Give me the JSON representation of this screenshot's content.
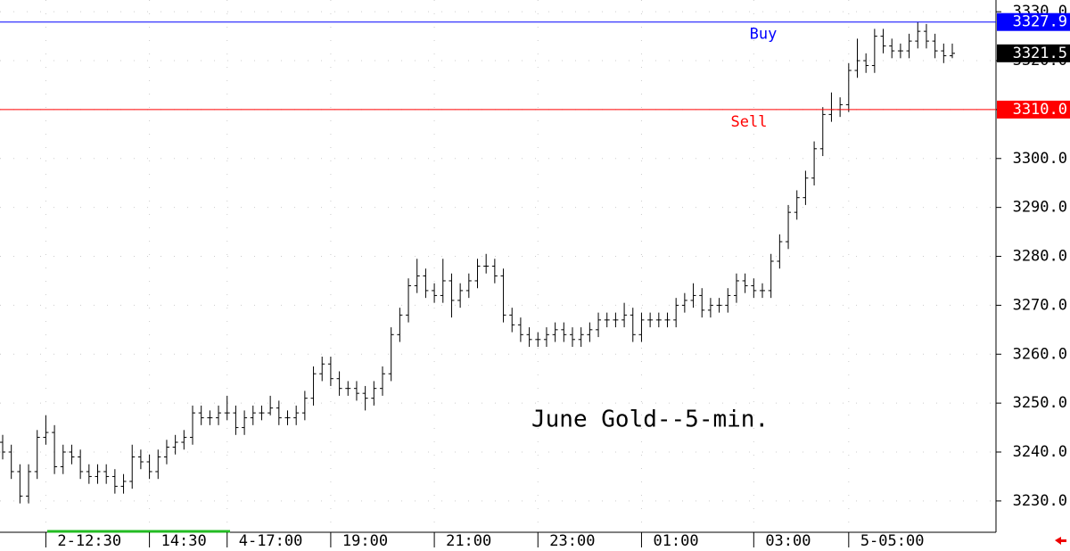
{
  "chart_data": {
    "type": "ohlc",
    "annotation": "June Gold--5-min.",
    "ylim": [
      3223.6,
      3332.4
    ],
    "yticks": [
      {
        "value": 3230,
        "label": "3230.0"
      },
      {
        "value": 3240,
        "label": "3240.0"
      },
      {
        "value": 3250,
        "label": "3250.0"
      },
      {
        "value": 3260,
        "label": "3260.0"
      },
      {
        "value": 3270,
        "label": "3270.0"
      },
      {
        "value": 3280,
        "label": "3280.0"
      },
      {
        "value": 3290,
        "label": "3290.0"
      },
      {
        "value": 3300,
        "label": "3300.0"
      },
      {
        "value": 3310,
        "label": "3310.0"
      },
      {
        "value": 3320,
        "label": "3320.0"
      },
      {
        "value": 3330,
        "label": "3330.0"
      }
    ],
    "grid": true,
    "color": "#000000",
    "levels": [
      {
        "name": "Buy",
        "value": 3327.9,
        "color": "#0000ff"
      },
      {
        "name": "Sell",
        "value": 3310.0,
        "color": "#ff0000"
      }
    ],
    "last_value": 3321.5,
    "categories": [
      null,
      null,
      null,
      null,
      null,
      "2-12:30",
      null,
      null,
      null,
      null,
      null,
      null,
      null,
      null,
      null,
      null,
      null,
      "14:30",
      null,
      null,
      null,
      null,
      null,
      null,
      null,
      null,
      "4-17:00",
      null,
      null,
      null,
      null,
      null,
      null,
      null,
      null,
      null,
      null,
      null,
      "19:00",
      null,
      null,
      null,
      null,
      null,
      null,
      null,
      null,
      null,
      null,
      null,
      "21:00",
      null,
      null,
      null,
      null,
      null,
      null,
      null,
      null,
      null,
      null,
      null,
      "23:00",
      null,
      null,
      null,
      null,
      null,
      null,
      null,
      null,
      null,
      null,
      null,
      "01:00",
      null,
      null,
      null,
      null,
      null,
      null,
      null,
      null,
      null,
      null,
      null,
      null,
      "03:00",
      null,
      null,
      null,
      null,
      null,
      null,
      null,
      null,
      null,
      null,
      "5-05:00",
      null,
      null,
      null,
      null,
      null,
      null,
      null,
      null,
      null,
      null,
      null,
      null
    ],
    "bars": [
      [
        3242,
        3243.5,
        3238.5,
        3240
      ],
      [
        3240,
        3241.5,
        3234.5,
        3236
      ],
      [
        3236,
        3237.5,
        3229.5,
        3231
      ],
      [
        3231,
        3237.5,
        3229.5,
        3236
      ],
      [
        3236,
        3244.5,
        3234.5,
        3243
      ],
      [
        3243,
        3247.5,
        3241.5,
        3244
      ],
      [
        3244,
        3245.5,
        3235.5,
        3237
      ],
      [
        3237,
        3241.5,
        3235.5,
        3240
      ],
      [
        3240,
        3241.5,
        3237.5,
        3239
      ],
      [
        3239,
        3240.5,
        3234.5,
        3236
      ],
      [
        3236,
        3237.5,
        3233.5,
        3235
      ],
      [
        3235,
        3237.5,
        3233.5,
        3236
      ],
      [
        3236,
        3237.5,
        3233.5,
        3235
      ],
      [
        3235,
        3236.5,
        3231.5,
        3233
      ],
      [
        3233,
        3235.5,
        3231.5,
        3234
      ],
      [
        3234,
        3241.5,
        3232.5,
        3239
      ],
      [
        3239,
        3240.5,
        3236.5,
        3238
      ],
      [
        3238,
        3239.5,
        3234.5,
        3236
      ],
      [
        3236,
        3240.5,
        3234.5,
        3239
      ],
      [
        3239,
        3242.5,
        3237.5,
        3241
      ],
      [
        3241,
        3243.5,
        3239.5,
        3242
      ],
      [
        3242,
        3244.5,
        3240.5,
        3243
      ],
      [
        3243,
        3249.5,
        3241.5,
        3248
      ],
      [
        3248,
        3249.5,
        3245.5,
        3247
      ],
      [
        3247,
        3248.5,
        3245.5,
        3247
      ],
      [
        3247,
        3249.5,
        3245.5,
        3248
      ],
      [
        3248,
        3251.5,
        3246.5,
        3248
      ],
      [
        3248,
        3249.5,
        3243.5,
        3245
      ],
      [
        3245,
        3248.5,
        3243.5,
        3247
      ],
      [
        3247,
        3249.5,
        3245.5,
        3248
      ],
      [
        3248,
        3249.5,
        3246.5,
        3248
      ],
      [
        3248,
        3251.5,
        3247.5,
        3249
      ],
      [
        3249,
        3250.5,
        3245.5,
        3247
      ],
      [
        3247,
        3248.5,
        3245.5,
        3247
      ],
      [
        3247,
        3249.5,
        3245.5,
        3248
      ],
      [
        3248,
        3252.5,
        3246.5,
        3251
      ],
      [
        3251,
        3257.5,
        3249.5,
        3256
      ],
      [
        3256,
        3259.5,
        3254.5,
        3258
      ],
      [
        3258,
        3259.5,
        3253.5,
        3255
      ],
      [
        3255,
        3256.5,
        3251.5,
        3253
      ],
      [
        3253,
        3254.5,
        3251.5,
        3253
      ],
      [
        3253,
        3254.5,
        3250.5,
        3252
      ],
      [
        3252,
        3253.5,
        3248.5,
        3251
      ],
      [
        3251,
        3254.5,
        3249.5,
        3253
      ],
      [
        3253,
        3257.5,
        3251.5,
        3256
      ],
      [
        3256,
        3265.5,
        3254.5,
        3264
      ],
      [
        3264,
        3269.5,
        3262.5,
        3268
      ],
      [
        3268,
        3275.5,
        3266.5,
        3274
      ],
      [
        3274,
        3279.5,
        3272.5,
        3276
      ],
      [
        3276,
        3277.5,
        3271.5,
        3273
      ],
      [
        3273,
        3274.5,
        3270.5,
        3272
      ],
      [
        3272,
        3279.5,
        3270.5,
        3275
      ],
      [
        3275,
        3276.5,
        3267.5,
        3271
      ],
      [
        3271,
        3274.5,
        3269.5,
        3273
      ],
      [
        3273,
        3276.5,
        3271.5,
        3275
      ],
      [
        3275,
        3279.5,
        3273.5,
        3278
      ],
      [
        3278,
        3280.5,
        3276.5,
        3278
      ],
      [
        3278,
        3279.5,
        3274.5,
        3276
      ],
      [
        3276,
        3277.5,
        3266.5,
        3268
      ],
      [
        3268,
        3269.5,
        3264.5,
        3266
      ],
      [
        3266,
        3267.5,
        3262.5,
        3264
      ],
      [
        3264,
        3265.5,
        3261.5,
        3263
      ],
      [
        3263,
        3264.5,
        3261.5,
        3263
      ],
      [
        3263,
        3265.5,
        3261.5,
        3264
      ],
      [
        3264,
        3266.5,
        3262.5,
        3265
      ],
      [
        3265,
        3266.5,
        3262.5,
        3264
      ],
      [
        3264,
        3265.5,
        3261.5,
        3263
      ],
      [
        3263,
        3265.5,
        3261.5,
        3264
      ],
      [
        3264,
        3266.5,
        3262.5,
        3265
      ],
      [
        3265,
        3268.5,
        3263.5,
        3267
      ],
      [
        3267,
        3268.5,
        3265.5,
        3267
      ],
      [
        3267,
        3268.5,
        3265.5,
        3267
      ],
      [
        3267,
        3270.5,
        3265.5,
        3268
      ],
      [
        3268,
        3269.5,
        3262.5,
        3264
      ],
      [
        3264,
        3268.5,
        3262.5,
        3267
      ],
      [
        3267,
        3268.5,
        3265.5,
        3267
      ],
      [
        3267,
        3268.5,
        3265.5,
        3267
      ],
      [
        3267,
        3268.5,
        3265.5,
        3267
      ],
      [
        3267,
        3271.5,
        3265.5,
        3270
      ],
      [
        3270,
        3272.5,
        3268.5,
        3271
      ],
      [
        3271,
        3274.5,
        3269.5,
        3272
      ],
      [
        3272,
        3273.5,
        3267.5,
        3269
      ],
      [
        3269,
        3271.5,
        3267.5,
        3270
      ],
      [
        3270,
        3271.5,
        3268.5,
        3270
      ],
      [
        3270,
        3273.5,
        3268.5,
        3272
      ],
      [
        3272,
        3276.5,
        3270.5,
        3275
      ],
      [
        3275,
        3276.5,
        3272.5,
        3274
      ],
      [
        3274,
        3275.5,
        3271.5,
        3273
      ],
      [
        3273,
        3274.5,
        3271.5,
        3273
      ],
      [
        3273,
        3280.5,
        3271.5,
        3279
      ],
      [
        3279,
        3284.5,
        3277.5,
        3283
      ],
      [
        3283,
        3290.5,
        3281.5,
        3289
      ],
      [
        3289,
        3293.5,
        3287.5,
        3292
      ],
      [
        3292,
        3297.5,
        3290.5,
        3296
      ],
      [
        3296,
        3303.5,
        3294.5,
        3302
      ],
      [
        3302,
        3310.5,
        3300.5,
        3309
      ],
      [
        3309,
        3313.5,
        3307.5,
        3310
      ],
      [
        3310,
        3312.5,
        3308.5,
        3311
      ],
      [
        3311,
        3319.5,
        3309.5,
        3318
      ],
      [
        3318,
        3324.5,
        3316.5,
        3320
      ],
      [
        3320,
        3321.5,
        3317.5,
        3319
      ],
      [
        3319,
        3326.5,
        3317.5,
        3325
      ],
      [
        3325,
        3326.5,
        3321.5,
        3323
      ],
      [
        3323,
        3324.5,
        3320.5,
        3322
      ],
      [
        3322,
        3323.5,
        3320.5,
        3322
      ],
      [
        3322,
        3325.5,
        3320.5,
        3324
      ],
      [
        3324,
        3327.9,
        3322.5,
        3326
      ],
      [
        3326,
        3327.5,
        3322.5,
        3324
      ],
      [
        3324,
        3325.5,
        3320.5,
        3322
      ],
      [
        3322,
        3323.5,
        3319.5,
        3321
      ],
      [
        3321,
        3323.5,
        3320.5,
        3321.5
      ]
    ]
  }
}
